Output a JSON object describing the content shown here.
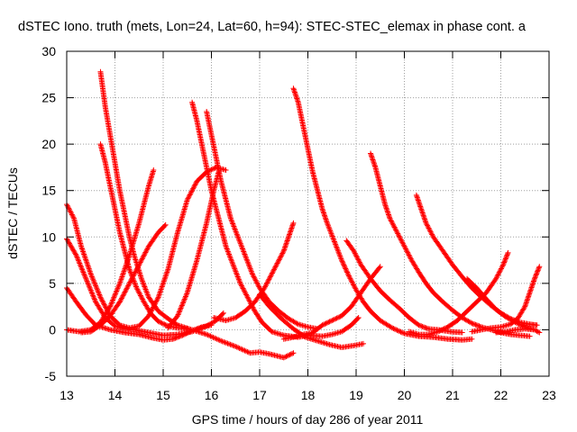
{
  "chart_data": {
    "type": "scatter",
    "title": "dSTEC Iono. truth (mets, Lon=24, Lat=60, h=94): STEC-STEC_elemax in phase cont. a",
    "xlabel": "GPS time / hours of day 286 of year 2011",
    "ylabel": "dSTEC  / TECUs",
    "xlim": [
      13,
      23
    ],
    "ylim": [
      -5,
      30
    ],
    "xticks": [
      "13",
      "14",
      "15",
      "16",
      "17",
      "18",
      "19",
      "20",
      "21",
      "22",
      "23"
    ],
    "yticks": [
      "-5",
      "0",
      "5",
      "10",
      "15",
      "20",
      "25",
      "30"
    ],
    "grid": true,
    "marker": "+",
    "series_color": "#ff0000",
    "arcs": [
      [
        [
          13.0,
          13.5
        ],
        [
          13.15,
          12.0
        ],
        [
          13.3,
          9.0
        ],
        [
          13.5,
          6.0
        ],
        [
          13.7,
          3.5
        ],
        [
          13.9,
          1.5
        ],
        [
          14.1,
          0.5
        ],
        [
          14.3,
          0.2
        ],
        [
          14.5,
          0.4
        ],
        [
          14.7,
          1.5
        ],
        [
          14.9,
          3.5
        ],
        [
          15.1,
          6.5
        ],
        [
          15.3,
          10.5
        ],
        [
          15.5,
          14.0
        ],
        [
          15.7,
          16.0
        ],
        [
          15.9,
          17.0
        ],
        [
          16.1,
          17.5
        ],
        [
          16.3,
          17.2
        ]
      ],
      [
        [
          13.0,
          9.8
        ],
        [
          13.2,
          8.0
        ],
        [
          13.4,
          5.5
        ],
        [
          13.6,
          3.0
        ],
        [
          13.8,
          1.3
        ],
        [
          14.0,
          0.4
        ],
        [
          14.2,
          0.1
        ],
        [
          14.4,
          0.0
        ],
        [
          14.7,
          -0.3
        ],
        [
          15.0,
          -0.6
        ],
        [
          15.3,
          -0.5
        ],
        [
          15.6,
          -0.2
        ],
        [
          15.9,
          0.4
        ],
        [
          16.1,
          1.0
        ],
        [
          16.25,
          1.8
        ]
      ],
      [
        [
          13.0,
          4.5
        ],
        [
          13.2,
          3.0
        ],
        [
          13.4,
          1.6
        ],
        [
          13.6,
          0.5
        ],
        [
          13.9,
          0.0
        ],
        [
          14.2,
          -0.3
        ],
        [
          14.5,
          -0.5
        ],
        [
          14.8,
          -0.9
        ],
        [
          15.0,
          -1.1
        ],
        [
          15.2,
          -1.0
        ],
        [
          15.4,
          -0.6
        ],
        [
          15.6,
          -0.1
        ],
        [
          15.8,
          0.3
        ],
        [
          16.0,
          0.5
        ]
      ],
      [
        [
          13.0,
          0.0
        ],
        [
          13.25,
          -0.2
        ],
        [
          13.5,
          0.0
        ],
        [
          13.7,
          0.8
        ],
        [
          13.9,
          2.5
        ],
        [
          14.1,
          5.0
        ],
        [
          14.3,
          8.0
        ],
        [
          14.5,
          11.5
        ],
        [
          14.7,
          15.5
        ],
        [
          14.8,
          17.2
        ]
      ],
      [
        [
          13.3,
          -0.3
        ],
        [
          13.5,
          -0.2
        ],
        [
          13.7,
          0.5
        ],
        [
          13.9,
          1.5
        ],
        [
          14.1,
          3.0
        ],
        [
          14.3,
          5.0
        ],
        [
          14.5,
          7.0
        ],
        [
          14.7,
          9.0
        ],
        [
          14.9,
          10.5
        ],
        [
          15.05,
          11.3
        ]
      ],
      [
        [
          13.7,
          27.8
        ],
        [
          13.8,
          24.0
        ],
        [
          13.9,
          21.0
        ],
        [
          14.0,
          18.0
        ],
        [
          14.1,
          15.0
        ],
        [
          14.2,
          12.5
        ],
        [
          14.3,
          10.0
        ],
        [
          14.4,
          8.0
        ],
        [
          14.55,
          5.5
        ],
        [
          14.7,
          3.5
        ],
        [
          14.9,
          2.0
        ],
        [
          15.1,
          1.2
        ],
        [
          15.3,
          0.5
        ],
        [
          15.6,
          0.0
        ],
        [
          15.9,
          -0.5
        ],
        [
          16.2,
          -1.2
        ],
        [
          16.5,
          -1.8
        ],
        [
          16.8,
          -2.5
        ],
        [
          17.0,
          -2.4
        ],
        [
          17.2,
          -2.6
        ],
        [
          17.5,
          -3.0
        ],
        [
          17.7,
          -2.5
        ]
      ],
      [
        [
          13.7,
          20.0
        ],
        [
          13.8,
          18.0
        ],
        [
          13.9,
          15.5
        ],
        [
          14.0,
          13.0
        ],
        [
          14.1,
          10.5
        ],
        [
          14.2,
          8.5
        ],
        [
          14.3,
          6.5
        ],
        [
          14.45,
          4.5
        ],
        [
          14.6,
          3.0
        ],
        [
          14.75,
          1.7
        ],
        [
          14.9,
          0.9
        ],
        [
          15.1,
          0.4
        ],
        [
          15.3,
          0.2
        ],
        [
          15.5,
          0.1
        ]
      ],
      [
        [
          15.1,
          0.2
        ],
        [
          15.3,
          1.5
        ],
        [
          15.5,
          4.0
        ],
        [
          15.7,
          7.5
        ],
        [
          15.9,
          11.5
        ],
        [
          16.05,
          15.0
        ],
        [
          16.15,
          17.0
        ]
      ],
      [
        [
          15.6,
          24.5
        ],
        [
          15.7,
          22.5
        ],
        [
          15.8,
          20.0
        ],
        [
          15.9,
          17.5
        ],
        [
          16.0,
          15.0
        ],
        [
          16.1,
          13.0
        ],
        [
          16.2,
          11.0
        ],
        [
          16.3,
          9.0
        ],
        [
          16.45,
          7.0
        ],
        [
          16.6,
          5.0
        ],
        [
          16.75,
          3.5
        ],
        [
          16.9,
          2.0
        ],
        [
          17.05,
          0.8
        ],
        [
          17.25,
          -0.2
        ],
        [
          17.5,
          -0.6
        ],
        [
          17.8,
          -0.8
        ],
        [
          18.0,
          -0.6
        ],
        [
          18.3,
          -0.7
        ],
        [
          18.5,
          -0.5
        ],
        [
          18.7,
          -0.2
        ],
        [
          18.9,
          0.5
        ],
        [
          19.05,
          1.3
        ]
      ],
      [
        [
          15.9,
          23.5
        ],
        [
          16.0,
          21.0
        ],
        [
          16.1,
          18.5
        ],
        [
          16.2,
          16.0
        ],
        [
          16.3,
          14.0
        ],
        [
          16.4,
          12.0
        ],
        [
          16.55,
          10.0
        ],
        [
          16.7,
          8.0
        ],
        [
          16.85,
          6.0
        ],
        [
          17.0,
          4.5
        ],
        [
          17.2,
          3.0
        ],
        [
          17.4,
          2.0
        ],
        [
          17.6,
          1.2
        ],
        [
          17.8,
          0.6
        ],
        [
          18.0,
          0.3
        ],
        [
          18.2,
          0.1
        ]
      ],
      [
        [
          16.05,
          1.3
        ],
        [
          16.3,
          1.0
        ],
        [
          16.5,
          1.3
        ],
        [
          16.7,
          2.0
        ],
        [
          16.9,
          3.0
        ],
        [
          17.1,
          4.5
        ],
        [
          17.3,
          6.5
        ],
        [
          17.5,
          8.5
        ],
        [
          17.6,
          10.0
        ],
        [
          17.7,
          11.5
        ]
      ],
      [
        [
          17.7,
          26.0
        ],
        [
          17.8,
          24.5
        ],
        [
          17.9,
          22.0
        ],
        [
          18.0,
          19.5
        ],
        [
          18.1,
          17.0
        ],
        [
          18.2,
          15.0
        ],
        [
          18.3,
          13.0
        ],
        [
          18.4,
          11.5
        ],
        [
          18.55,
          9.5
        ],
        [
          18.7,
          7.5
        ],
        [
          18.85,
          5.8
        ],
        [
          19.0,
          4.3
        ],
        [
          19.15,
          3.0
        ],
        [
          19.3,
          2.0
        ],
        [
          19.5,
          1.0
        ],
        [
          19.75,
          0.2
        ],
        [
          20.0,
          -0.4
        ],
        [
          20.3,
          -0.7
        ],
        [
          20.6,
          -0.8
        ],
        [
          20.9,
          -1.0
        ],
        [
          21.2,
          -1.1
        ],
        [
          21.4,
          -1.0
        ]
      ],
      [
        [
          17.0,
          3.8
        ],
        [
          17.2,
          2.5
        ],
        [
          17.45,
          1.2
        ],
        [
          17.7,
          0.1
        ],
        [
          17.95,
          -0.8
        ],
        [
          18.2,
          -1.2
        ],
        [
          18.45,
          -1.6
        ],
        [
          18.7,
          -1.9
        ],
        [
          18.95,
          -1.7
        ],
        [
          19.15,
          -1.5
        ]
      ],
      [
        [
          17.5,
          -1.0
        ],
        [
          17.7,
          -0.8
        ],
        [
          17.9,
          -0.5
        ],
        [
          18.1,
          -0.3
        ],
        [
          18.3,
          0.5
        ],
        [
          18.5,
          1.0
        ],
        [
          18.7,
          1.5
        ],
        [
          18.9,
          2.5
        ],
        [
          19.1,
          4.0
        ],
        [
          19.3,
          5.5
        ],
        [
          19.5,
          6.8
        ]
      ],
      [
        [
          18.8,
          9.6
        ],
        [
          18.95,
          8.5
        ],
        [
          19.1,
          7.0
        ],
        [
          19.3,
          5.5
        ],
        [
          19.5,
          4.2
        ],
        [
          19.7,
          3.2
        ],
        [
          19.9,
          2.3
        ],
        [
          20.1,
          1.3
        ],
        [
          20.3,
          0.5
        ],
        [
          20.5,
          0.1
        ],
        [
          20.7,
          0.0
        ],
        [
          20.95,
          -0.2
        ],
        [
          21.2,
          -0.3
        ]
      ],
      [
        [
          19.3,
          19.0
        ],
        [
          19.4,
          17.5
        ],
        [
          19.5,
          15.5
        ],
        [
          19.6,
          13.5
        ],
        [
          19.7,
          12.0
        ],
        [
          19.85,
          10.5
        ],
        [
          20.0,
          9.0
        ],
        [
          20.15,
          7.5
        ],
        [
          20.3,
          6.2
        ],
        [
          20.45,
          5.0
        ],
        [
          20.6,
          4.0
        ],
        [
          20.8,
          3.0
        ],
        [
          21.0,
          2.1
        ],
        [
          21.2,
          1.3
        ],
        [
          21.4,
          0.7
        ],
        [
          21.6,
          0.3
        ],
        [
          21.8,
          0.0
        ],
        [
          22.0,
          -0.3
        ],
        [
          22.2,
          -0.5
        ],
        [
          22.4,
          -0.6
        ],
        [
          22.6,
          -0.7
        ]
      ],
      [
        [
          20.25,
          14.5
        ],
        [
          20.35,
          13.0
        ],
        [
          20.45,
          11.5
        ],
        [
          20.6,
          10.0
        ],
        [
          20.8,
          8.5
        ],
        [
          21.0,
          7.0
        ],
        [
          21.2,
          5.7
        ],
        [
          21.4,
          4.5
        ],
        [
          21.6,
          3.5
        ],
        [
          21.8,
          2.6
        ],
        [
          22.0,
          1.8
        ],
        [
          22.2,
          1.2
        ],
        [
          22.4,
          0.8
        ],
        [
          22.6,
          0.6
        ],
        [
          22.75,
          0.5
        ]
      ],
      [
        [
          20.1,
          -0.2
        ],
        [
          20.3,
          -0.5
        ],
        [
          20.5,
          -0.5
        ],
        [
          20.7,
          -0.2
        ],
        [
          20.9,
          0.3
        ],
        [
          21.1,
          1.0
        ],
        [
          21.3,
          2.0
        ],
        [
          21.5,
          3.0
        ],
        [
          21.7,
          4.0
        ],
        [
          21.9,
          5.5
        ],
        [
          22.05,
          7.0
        ],
        [
          22.15,
          8.3
        ]
      ],
      [
        [
          21.3,
          5.5
        ],
        [
          21.5,
          4.5
        ],
        [
          21.7,
          3.3
        ],
        [
          21.9,
          2.2
        ],
        [
          22.1,
          1.4
        ],
        [
          22.3,
          0.8
        ],
        [
          22.5,
          0.3
        ],
        [
          22.7,
          0.0
        ]
      ],
      [
        [
          21.4,
          -0.2
        ],
        [
          21.6,
          0.0
        ],
        [
          21.8,
          0.2
        ],
        [
          22.0,
          0.3
        ],
        [
          22.2,
          0.6
        ],
        [
          22.35,
          1.2
        ],
        [
          22.5,
          2.5
        ],
        [
          22.6,
          4.0
        ],
        [
          22.7,
          5.5
        ],
        [
          22.8,
          6.8
        ]
      ],
      [
        [
          21.9,
          -0.3
        ],
        [
          22.1,
          -0.2
        ],
        [
          22.3,
          0.0
        ],
        [
          22.5,
          0.1
        ],
        [
          22.7,
          0.0
        ],
        [
          22.8,
          -0.3
        ]
      ]
    ]
  }
}
